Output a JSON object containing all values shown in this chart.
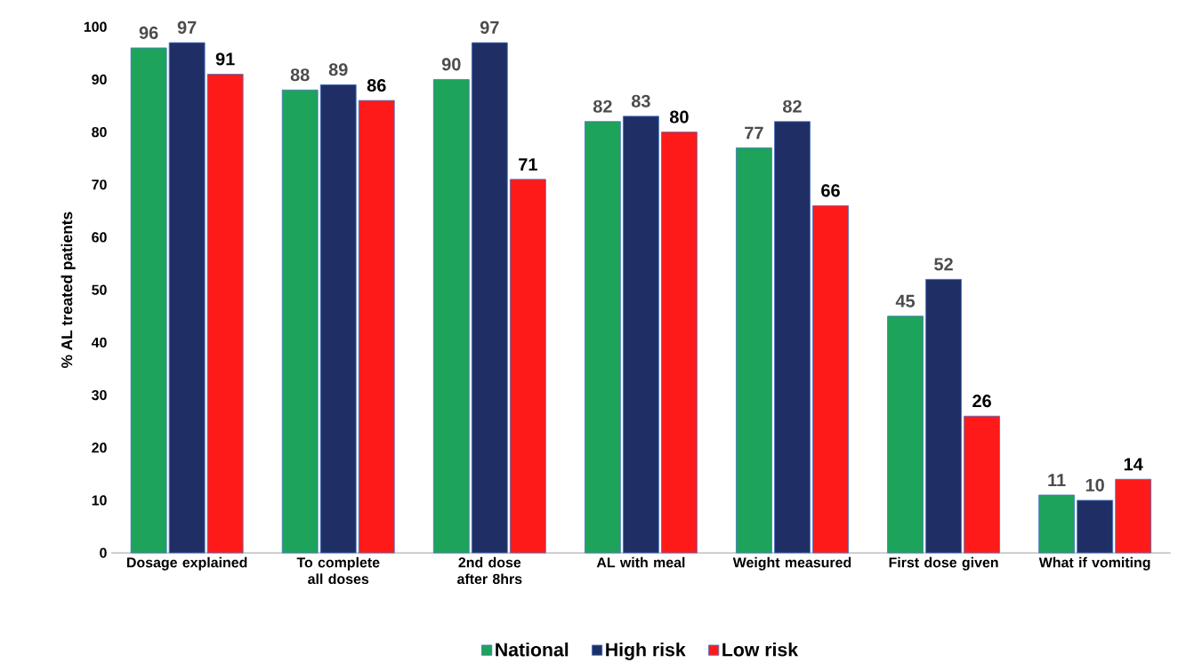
{
  "chart_data": {
    "type": "bar",
    "ylabel": "% AL treated patients",
    "categories": [
      "Dosage explained",
      "To complete all doses",
      "2nd dose after 8hrs",
      "AL with meal",
      "Weight measured",
      "First dose given",
      "What if vomiting"
    ],
    "series": [
      {
        "name": "National",
        "color": "#1ea35a",
        "values": [
          96,
          88,
          90,
          82,
          77,
          45,
          11
        ]
      },
      {
        "name": "High risk",
        "color": "#1f2f66",
        "values": [
          97,
          89,
          97,
          83,
          82,
          52,
          10
        ]
      },
      {
        "name": "Low risk",
        "color": "#ff1a1a",
        "values": [
          91,
          86,
          71,
          80,
          66,
          26,
          14
        ]
      }
    ],
    "ylim": [
      0,
      100
    ],
    "yticks": [
      0,
      10,
      20,
      30,
      40,
      50,
      60,
      70,
      80,
      90,
      100
    ],
    "data_labels": true,
    "grid": false,
    "legend": "bottom"
  }
}
